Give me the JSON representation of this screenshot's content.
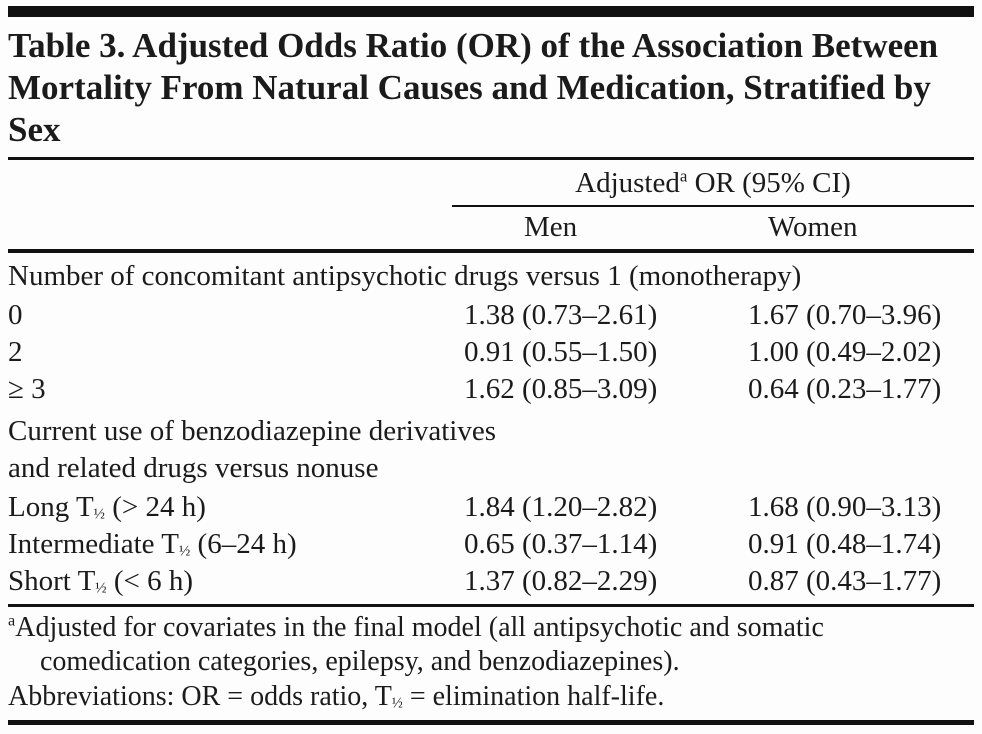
{
  "title": "Table 3. Adjusted Odds Ratio (OR) of the Association Between Mortality From Natural Causes and Medication, Stratified by Sex",
  "header": {
    "spanner": {
      "pre": "Adjusted",
      "sup": "a",
      "post": " OR (95% CI)"
    },
    "columns": {
      "men": "Men",
      "women": "Women"
    }
  },
  "sections": [
    {
      "label_lines": [
        "Number of concomitant antipsychotic drugs versus 1 (monotherapy)"
      ],
      "rows": [
        {
          "pre": "0",
          "sub": "",
          "post": "",
          "men": "1.38 (0.73–2.61)",
          "women": "1.67 (0.70–3.96)"
        },
        {
          "pre": "2",
          "sub": "",
          "post": "",
          "men": "0.91 (0.55–1.50)",
          "women": "1.00 (0.49–2.02)"
        },
        {
          "pre": "≥ 3",
          "sub": "",
          "post": "",
          "men": "1.62 (0.85–3.09)",
          "women": "0.64 (0.23–1.77)"
        }
      ]
    },
    {
      "label_lines": [
        "Current use of benzodiazepine derivatives",
        "and related drugs versus nonuse"
      ],
      "rows": [
        {
          "pre": "Long T",
          "sub": "½",
          "post": " (> 24 h)",
          "men": "1.84 (1.20–2.82)",
          "women": "1.68 (0.90–3.13)"
        },
        {
          "pre": "Intermediate T",
          "sub": "½",
          "post": " (6–24 h)",
          "men": "0.65 (0.37–1.14)",
          "women": "0.91 (0.48–1.74)"
        },
        {
          "pre": "Short T",
          "sub": "½",
          "post": " (< 6 h)",
          "men": "1.37 (0.82–2.29)",
          "women": "0.87 (0.43–1.77)"
        }
      ]
    }
  ],
  "footnotes": {
    "a": {
      "sup": "a",
      "text": "Adjusted for covariates in the final model (all antipsychotic and somatic comedication categories, epilepsy, and benzodiazepines)."
    },
    "abbrev": {
      "pre": "Abbreviations: OR = odds ratio, T",
      "sub": "½",
      "post": " = elimination half-life."
    }
  },
  "colors": {
    "text": "#1b1b1b",
    "rule": "#111111",
    "background": "#fdfdfd"
  }
}
